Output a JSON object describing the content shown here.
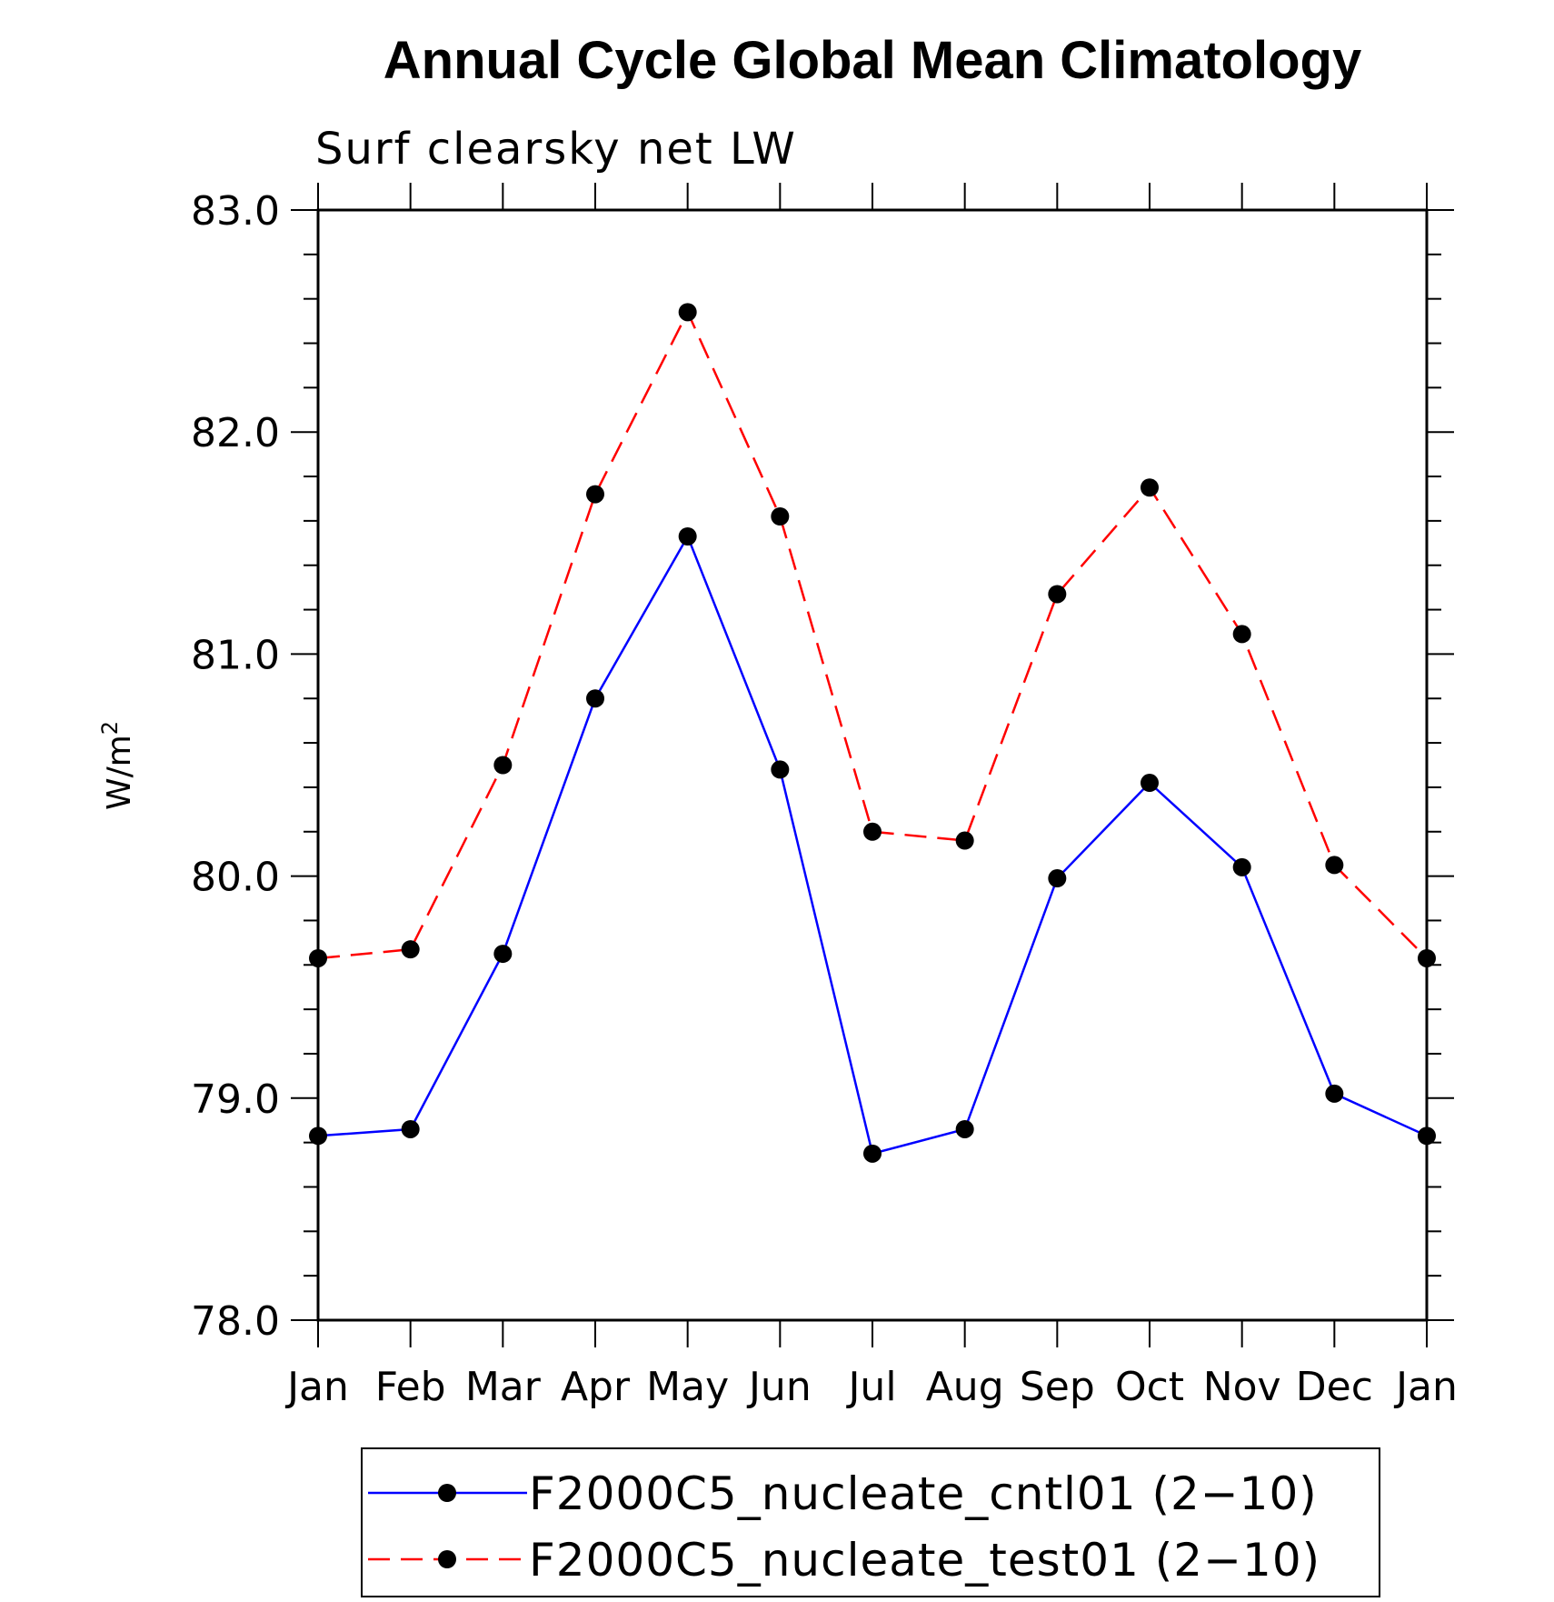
{
  "chart_data": {
    "type": "line",
    "title": "Annual Cycle Global Mean Climatology",
    "subtitle": "Surf clearsky net LW",
    "ylabel": "W/m",
    "ylabel_superscript": "2",
    "xlabel": "",
    "x": [
      "Jan",
      "Feb",
      "Mar",
      "Apr",
      "May",
      "Jun",
      "Jul",
      "Aug",
      "Sep",
      "Oct",
      "Nov",
      "Dec",
      "Jan"
    ],
    "ylim": [
      78.0,
      83.0
    ],
    "yticks": [
      "78.0",
      "79.0",
      "80.0",
      "81.0",
      "82.0",
      "83.0"
    ],
    "grid": false,
    "legend_position": "bottom",
    "series": [
      {
        "name": "F2000C5_nucleate_cntl01 (2−10)",
        "color": "#0000ff",
        "line_style": "solid",
        "marker": "filled-circle",
        "values": [
          78.83,
          78.86,
          79.65,
          80.8,
          81.53,
          80.48,
          78.75,
          78.86,
          79.99,
          80.42,
          80.04,
          79.02,
          78.83
        ]
      },
      {
        "name": "F2000C5_nucleate_test01 (2−10)",
        "color": "#ff0000",
        "line_style": "dashed",
        "marker": "filled-circle",
        "values": [
          79.63,
          79.67,
          80.5,
          81.72,
          82.54,
          81.62,
          80.2,
          80.16,
          81.27,
          81.75,
          81.09,
          80.05,
          79.63
        ]
      }
    ]
  }
}
